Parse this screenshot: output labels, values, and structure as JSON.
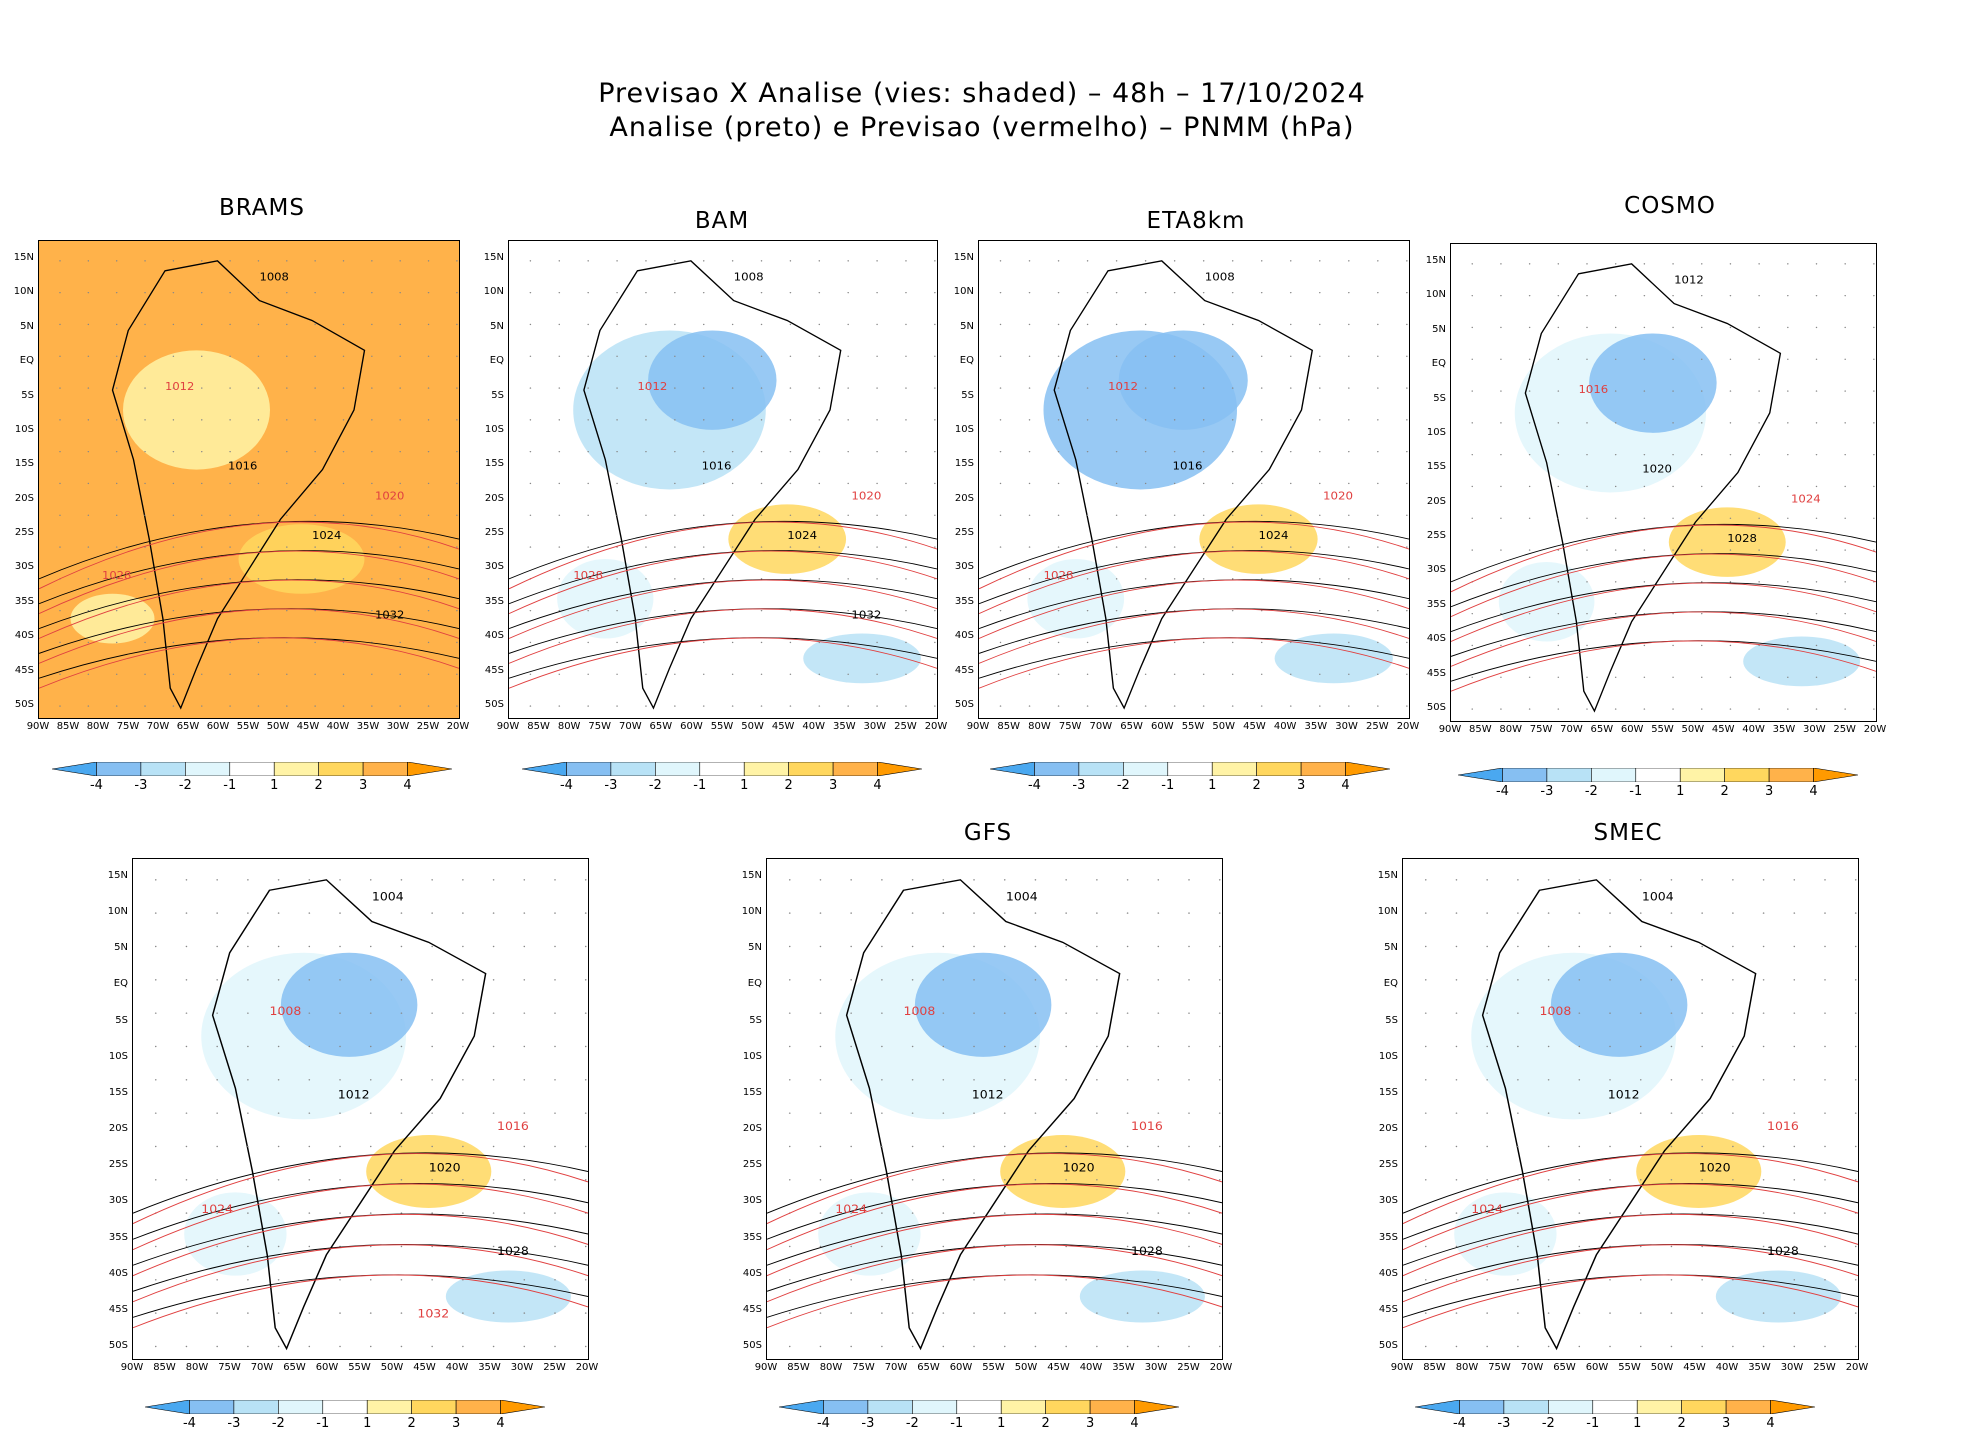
{
  "title": {
    "line1": "Previsao X Analise (vies: shaded) – 48h – 17/10/2024",
    "line2": "Analise (preto) e Previsao (vermelho) – PNMM (hPa)"
  },
  "axes": {
    "lat_labels": [
      "15N",
      "10N",
      "5N",
      "EQ",
      "5S",
      "10S",
      "15S",
      "20S",
      "25S",
      "30S",
      "35S",
      "40S",
      "45S",
      "50S"
    ],
    "lon_labels": [
      "90W",
      "85W",
      "80W",
      "75W",
      "70W",
      "65W",
      "60W",
      "55W",
      "50W",
      "45W",
      "40W",
      "35W",
      "30W",
      "25W",
      "20W"
    ]
  },
  "colorbar": {
    "labels": [
      "-4",
      "-3",
      "-2",
      "-1",
      "1",
      "2",
      "3",
      "4"
    ],
    "colors": [
      "#4aa8f0",
      "#86bff2",
      "#b8e2f6",
      "#e0f6fc",
      "#ffffff",
      "#fff3a6",
      "#ffd75e",
      "#ffb24a",
      "#ff9a00"
    ]
  },
  "panels": [
    {
      "name": "BRAMS",
      "contours": [
        "1008",
        "1012",
        "1016",
        "1020",
        "1024",
        "1028",
        "1032"
      ]
    },
    {
      "name": "BAM",
      "contours": [
        "1008",
        "1012",
        "1016",
        "1020",
        "1024",
        "1028",
        "1032"
      ]
    },
    {
      "name": "ETA8km",
      "contours": [
        "1008",
        "1012",
        "1016",
        "1020",
        "1024",
        "1028"
      ]
    },
    {
      "name": "COSMO",
      "contours": [
        "1012",
        "1016",
        "1020",
        "1024",
        "1028"
      ]
    },
    {
      "name": "",
      "contours": [
        "1004",
        "1008",
        "1012",
        "1016",
        "1020",
        "1024",
        "1028",
        "1032"
      ]
    },
    {
      "name": "GFS",
      "contours": [
        "1004",
        "1008",
        "1012",
        "1016",
        "1020",
        "1024",
        "1028"
      ]
    },
    {
      "name": "SMEC",
      "contours": [
        "1004",
        "1008",
        "1012",
        "1016",
        "1020",
        "1024",
        "1028"
      ]
    }
  ]
}
